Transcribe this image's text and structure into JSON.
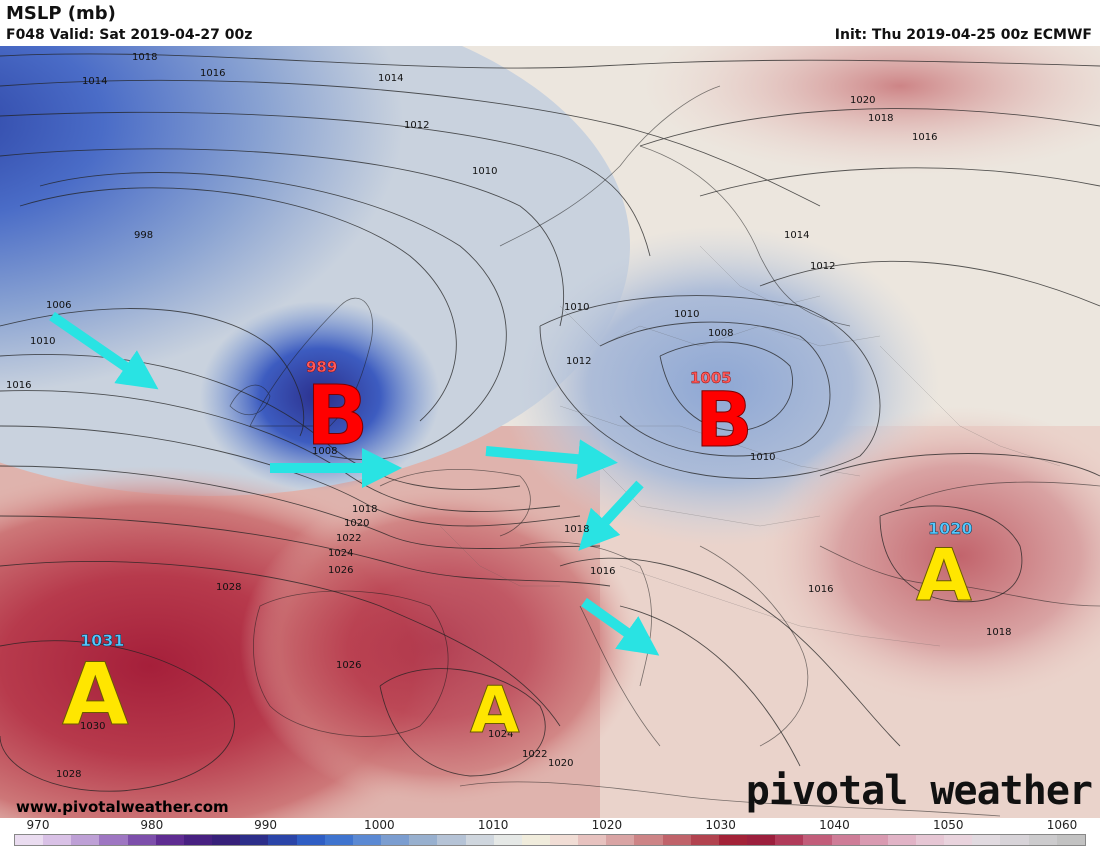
{
  "header": {
    "title": "MSLP (mb)",
    "valid": "F048 Valid: Sat 2019-04-27 00z",
    "init": "Init: Thu 2019-04-25 00z ECMWF"
  },
  "footer": {
    "website": "www.pivotalweather.com",
    "brand": "pivotal weather"
  },
  "colorbar": {
    "ticks": [
      "970",
      "980",
      "990",
      "1000",
      "1010",
      "1020",
      "1030",
      "1040",
      "1050",
      "1060"
    ],
    "colors": [
      "#eadcf0",
      "#d9c1e6",
      "#bea0d6",
      "#9e76c2",
      "#7d4fab",
      "#5f2c92",
      "#472081",
      "#37207a",
      "#2c2e8a",
      "#2b45a8",
      "#2f5ec4",
      "#3f74cf",
      "#5b89d3",
      "#7b9dd0",
      "#98b0cf",
      "#b5c3d6",
      "#cfd6de",
      "#e5e8e6",
      "#f0ecdc",
      "#f1ddd5",
      "#e7c2bf",
      "#d9a4a4",
      "#cd8486",
      "#c0636a",
      "#b2434f",
      "#a32238",
      "#9c1f3d",
      "#b13b5a",
      "#c25d7a",
      "#cf7d98",
      "#d99ab1",
      "#e1b3c6",
      "#e6c6d4",
      "#e9d3dd",
      "#e1dae0",
      "#d7d3d8",
      "#cccbcd",
      "#c2c2c2"
    ]
  },
  "map_labels": {
    "highs": [
      {
        "letter": "A",
        "value": "1031"
      },
      {
        "letter": "A",
        "value": ""
      },
      {
        "letter": "A",
        "value": "1020"
      }
    ],
    "lows": [
      {
        "letter": "B",
        "value": "989"
      },
      {
        "letter": "B",
        "value": "1005"
      }
    ],
    "isobar_labels": [
      "1018",
      "1016",
      "1014",
      "1014",
      "1012",
      "1010",
      "998",
      "1006",
      "1010",
      "1016",
      "1010",
      "1012",
      "1008",
      "1010",
      "1010",
      "1008",
      "1018",
      "1020",
      "1022",
      "1024",
      "1026",
      "1028",
      "1026",
      "1030",
      "1028",
      "1024",
      "1022",
      "1020",
      "1018",
      "1016",
      "1020",
      "1018",
      "1016",
      "1014",
      "1012",
      "1016",
      "1018",
      "1005",
      "989"
    ]
  },
  "colors": {
    "high_letter": "#ffe600",
    "low_letter": "#ff0000",
    "arrow": "#29e3e3",
    "high_value": "#55c8ff",
    "low_value": "#ff5a5a"
  }
}
